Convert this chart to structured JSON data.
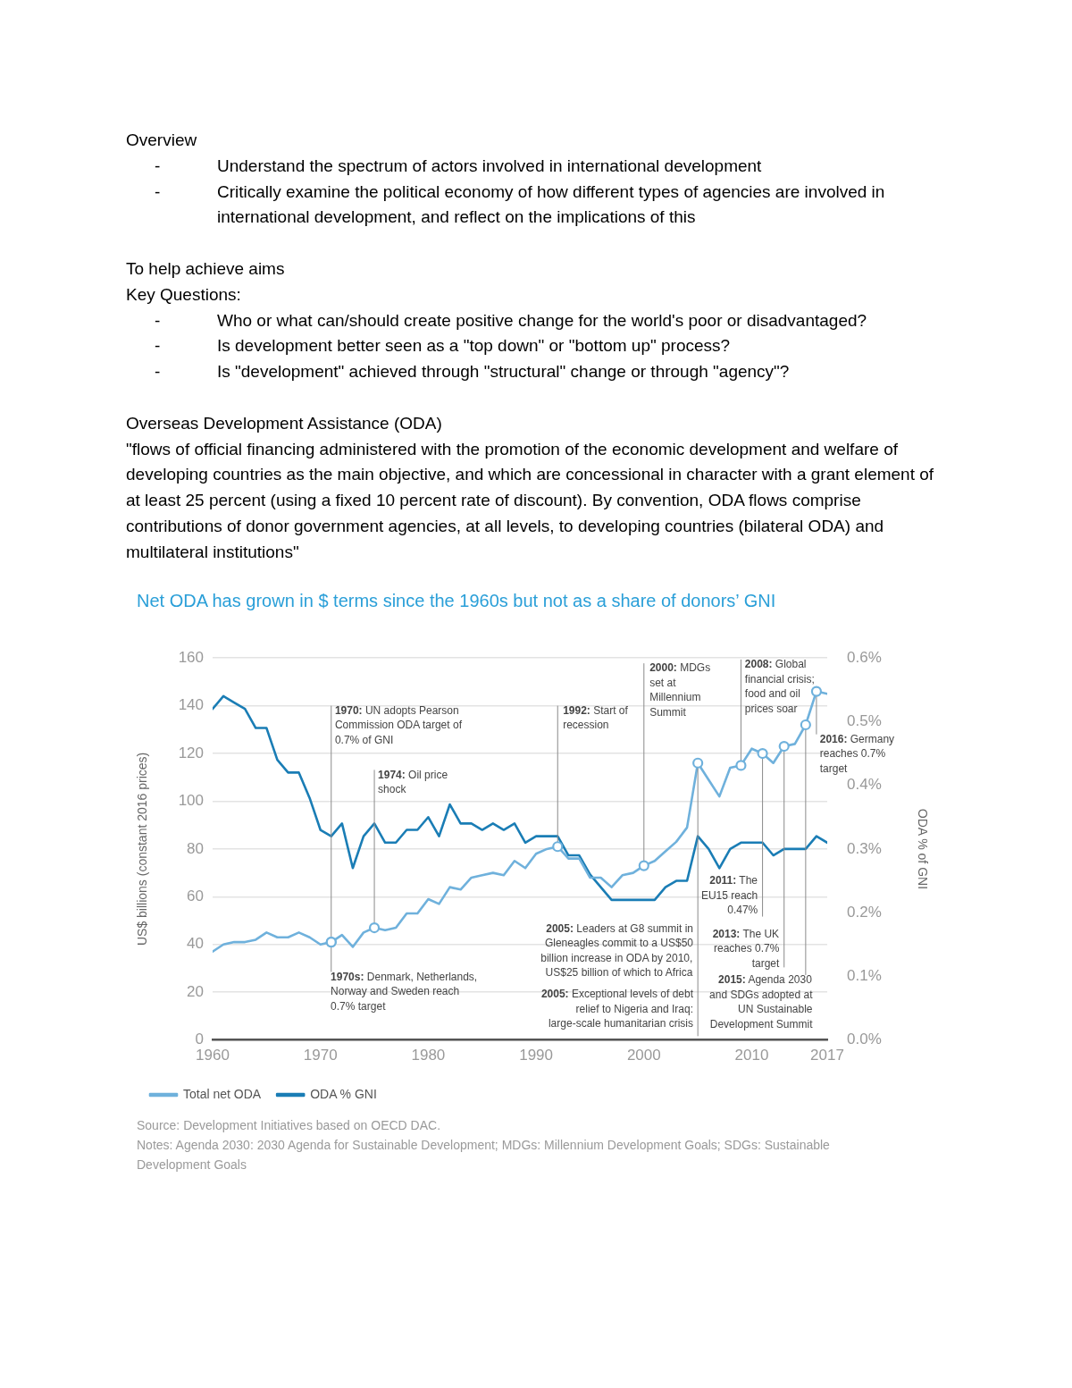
{
  "chart_data": {
    "type": "line",
    "subtitle": "Overview\n- Understand the spectrum of actors involved in international development\n- Critically examine the political economy of how different types of agencies are involved in international development, and reflect on the implications of this\n\nTo help achieve aims\nKey Questions:\n- Who or what can/should create positive change for the world's poor or disadvantaged?\n- Is development better seen as a \"top down\"  or \"bottom up\" process?\n- Is \"development\" achieved through \"structural\" change or through \"agency\"?\n\nOverseas Development Assistance (ODA)\n\"flows of official financing administered with the promotion of the economic development and welfare of developing countries as the main objective, and which are concessional in character with a grant element of at least 25 percent (using a fixed 10 percent rate of discount). By convention, ODA flows comprise contributions of donor government agencies, at all levels, to developing countries (bilateral ODA) and multilateral institutions\"",
    "title": "Net ODA has grown in $ terms since the 1960s but not as a share of donors’ GNI",
    "ylabel": "US$ billions (constant 2016 prices)",
    "y2label": "ODA % of GNI",
    "x": [
      1960,
      1961,
      1962,
      1963,
      1964,
      1965,
      1966,
      1967,
      1968,
      1969,
      1970,
      1971,
      1972,
      1973,
      1974,
      1975,
      1976,
      1977,
      1978,
      1979,
      1980,
      1981,
      1982,
      1983,
      1984,
      1985,
      1986,
      1987,
      1988,
      1989,
      1990,
      1991,
      1992,
      1993,
      1994,
      1995,
      1996,
      1997,
      1998,
      1999,
      2000,
      2001,
      2002,
      2003,
      2004,
      2005,
      2006,
      2007,
      2008,
      2009,
      2010,
      2011,
      2012,
      2013,
      2014,
      2015,
      2016,
      2017
    ],
    "series": [
      {
        "name": "Total net ODA",
        "color": "#6fb1dc",
        "values": [
          37,
          40,
          41,
          41,
          42,
          45,
          43,
          43,
          45,
          43,
          40,
          41,
          44,
          39,
          45,
          47,
          46,
          47,
          53,
          53,
          59,
          57,
          64,
          63,
          68,
          69,
          70,
          69,
          75,
          72,
          78,
          80,
          81,
          76,
          76,
          68,
          68,
          64,
          69,
          70,
          73,
          75,
          79,
          83,
          89,
          116,
          109,
          102,
          114,
          115,
          122,
          120,
          116,
          123,
          124,
          132,
          146,
          145
        ]
      },
      {
        "name": "ODA % GNI",
        "color": "#1a7db5",
        "axis": "y2",
        "values": [
          0.52,
          0.54,
          0.53,
          0.52,
          0.49,
          0.49,
          0.44,
          0.42,
          0.42,
          0.38,
          0.33,
          0.32,
          0.34,
          0.27,
          0.32,
          0.34,
          0.31,
          0.31,
          0.33,
          0.33,
          0.35,
          0.32,
          0.37,
          0.34,
          0.34,
          0.33,
          0.34,
          0.33,
          0.34,
          0.31,
          0.32,
          0.32,
          0.32,
          0.29,
          0.29,
          0.26,
          0.24,
          0.22,
          0.22,
          0.22,
          0.22,
          0.22,
          0.24,
          0.25,
          0.25,
          0.32,
          0.3,
          0.27,
          0.3,
          0.31,
          0.31,
          0.31,
          0.29,
          0.3,
          0.3,
          0.3,
          0.32,
          0.31
        ]
      }
    ],
    "xlim": [
      1960,
      2017
    ],
    "xticks": [
      1960,
      1970,
      1980,
      1990,
      2000,
      2010,
      2017
    ],
    "ylim": [
      0,
      160
    ],
    "yticks": [
      0,
      20,
      40,
      60,
      80,
      100,
      120,
      140,
      160
    ],
    "y2lim": [
      0,
      0.6
    ],
    "y2ticks": [
      {
        "value": 0,
        "label": "0.0%"
      },
      {
        "value": 0.1,
        "label": "0.1%"
      },
      {
        "value": 0.2,
        "label": "0.2%"
      },
      {
        "value": 0.3,
        "label": "0.3%"
      },
      {
        "value": 0.4,
        "label": "0.4%"
      },
      {
        "value": 0.5,
        "label": "0.5%"
      },
      {
        "value": 0.6,
        "label": "0.6%"
      }
    ],
    "grid": "y",
    "legend": "bottom",
    "marker": "none",
    "line_style": "solid",
    "annotations": [
      {
        "text": "1970: UN adopts Pearson Commission ODA target of 0.7% of GNI",
        "x": 1971,
        "y": 41
      },
      {
        "text": "1974: Oil price shock",
        "x": 1975,
        "y": 47
      },
      {
        "text": "1970s: Denmark, Netherlands, Norway and Sweden reach 0.7% target",
        "x": 1971,
        "y": 41
      },
      {
        "text": "1992: Start of recession",
        "x": 1992,
        "y": 81
      },
      {
        "text": "2000: MDGs set at Millennium Summit",
        "x": 2000,
        "y": 73
      },
      "2005: Leaders at G8 summit in Gleneagles commit to a US$50 billion increase in ODA by 2010, US$25 billion of which to Africa",
      {
        "text": "2005: Exceptional levels of debt relief to Nigeria and Iraq: large-scale humanitarian crisis",
        "x": 2005,
        "y": 116
      },
      {
        "text": "2008: Global financial crisis; food and oil prices soar",
        "x": 2009,
        "y": 115
      },
      {
        "text": "2011: The EU15 reach 0.47%",
        "x": 2011,
        "y": 120
      },
      {
        "text": "2013: The UK reaches 0.7% target",
        "x": 2013,
        "y": 123
      },
      {
        "text": "2015: Agenda 2030 and SDGs adopted at UN Sustainable Development Summit",
        "x": 2015,
        "y": 132
      },
      {
        "text": "2016: Germany reaches 0.7% target",
        "x": 2016,
        "y": 146
      },
      "Source: Development Initiatives based on OECD DAC.",
      "Notes: Agenda 2030: 2030 Agenda for Sustainable Development; MDGs: Millennium Development Goals; SDGs: Sustainable Development Goals"
    ]
  }
}
